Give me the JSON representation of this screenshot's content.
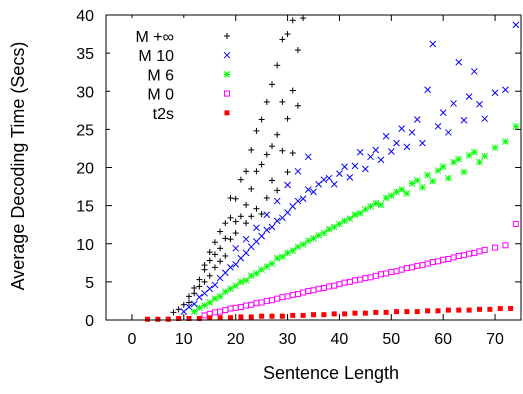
{
  "chart_data": {
    "type": "scatter",
    "title": "",
    "xlabel": "Sentence Length",
    "ylabel": "Average Decoding Time (Secs)",
    "xlim": [
      -5,
      75
    ],
    "ylim": [
      0,
      40
    ],
    "xticks": [
      "0",
      "10",
      "20",
      "30",
      "40",
      "50",
      "60",
      "70"
    ],
    "yticks": [
      "0",
      "5",
      "10",
      "15",
      "20",
      "25",
      "30",
      "35",
      "40"
    ],
    "grid": false,
    "legend_position": "top-left",
    "series": [
      {
        "name": "M +∞",
        "marker": "plus",
        "color": "#000000",
        "points": [
          [
            8,
            1.0
          ],
          [
            9,
            1.4
          ],
          [
            10,
            2.0
          ],
          [
            11,
            2.3
          ],
          [
            11,
            3.1
          ],
          [
            12,
            3.5
          ],
          [
            12,
            4.2
          ],
          [
            13,
            4.4
          ],
          [
            13,
            5.3
          ],
          [
            14,
            5.0
          ],
          [
            14,
            6.6
          ],
          [
            14,
            7.2
          ],
          [
            15,
            5.8
          ],
          [
            15,
            7.8
          ],
          [
            15,
            8.9
          ],
          [
            16,
            8.6
          ],
          [
            16,
            6.9
          ],
          [
            16,
            10.2
          ],
          [
            17,
            9.4
          ],
          [
            17,
            11.6
          ],
          [
            17,
            7.7
          ],
          [
            18,
            10.7
          ],
          [
            18,
            12.7
          ],
          [
            18,
            8.4
          ],
          [
            19,
            10.6
          ],
          [
            19,
            13.4
          ],
          [
            19,
            16.0
          ],
          [
            20,
            11.4
          ],
          [
            20,
            12.9
          ],
          [
            20,
            15.9
          ],
          [
            21,
            13.6
          ],
          [
            21,
            18.4
          ],
          [
            22,
            12.7
          ],
          [
            22,
            15.1
          ],
          [
            22,
            19.5
          ],
          [
            23,
            13.6
          ],
          [
            23,
            17.2
          ],
          [
            23,
            22.3
          ],
          [
            24,
            14.6
          ],
          [
            24,
            19.5
          ],
          [
            24,
            24.8
          ],
          [
            25,
            13.9
          ],
          [
            25,
            20.4
          ],
          [
            25,
            26.3
          ],
          [
            26,
            16.0
          ],
          [
            26,
            21.7
          ],
          [
            26,
            28.6
          ],
          [
            27,
            18.3
          ],
          [
            27,
            22.8
          ],
          [
            27,
            30.9
          ],
          [
            28,
            17.0
          ],
          [
            28,
            24.3
          ],
          [
            28,
            33.4
          ],
          [
            29,
            22.2
          ],
          [
            29,
            28.6
          ],
          [
            29,
            36.8
          ],
          [
            30,
            19.4
          ],
          [
            30,
            26.4
          ],
          [
            30,
            37.5
          ],
          [
            31,
            21.9
          ],
          [
            31,
            30.1
          ],
          [
            31,
            39.3
          ],
          [
            32,
            28.1
          ],
          [
            32,
            35.4
          ],
          [
            33,
            39.6
          ]
        ]
      },
      {
        "name": "M 10",
        "marker": "x",
        "color": "#0000ff",
        "points": [
          [
            10,
            1.1
          ],
          [
            11,
            1.7
          ],
          [
            12,
            2.1
          ],
          [
            13,
            3.0
          ],
          [
            14,
            3.5
          ],
          [
            15,
            4.1
          ],
          [
            16,
            4.6
          ],
          [
            17,
            5.5
          ],
          [
            18,
            6.2
          ],
          [
            19,
            6.9
          ],
          [
            20,
            7.3
          ],
          [
            20,
            9.4
          ],
          [
            21,
            8.1
          ],
          [
            22,
            8.8
          ],
          [
            22,
            10.6
          ],
          [
            23,
            9.6
          ],
          [
            24,
            10.3
          ],
          [
            24,
            12.1
          ],
          [
            25,
            11.0
          ],
          [
            26,
            11.8
          ],
          [
            26,
            13.8
          ],
          [
            27,
            12.2
          ],
          [
            28,
            13.0
          ],
          [
            28,
            15.6
          ],
          [
            29,
            13.4
          ],
          [
            30,
            14.1
          ],
          [
            30,
            17.7
          ],
          [
            31,
            14.9
          ],
          [
            32,
            15.6
          ],
          [
            32,
            19.5
          ],
          [
            33,
            15.9
          ],
          [
            34,
            17.1
          ],
          [
            34,
            21.4
          ],
          [
            35,
            16.8
          ],
          [
            36,
            17.8
          ],
          [
            37,
            18.4
          ],
          [
            38,
            18.6
          ],
          [
            39,
            17.8
          ],
          [
            40,
            19.2
          ],
          [
            41,
            20.1
          ],
          [
            42,
            18.7
          ],
          [
            43,
            20.2
          ],
          [
            44,
            22.0
          ],
          [
            45,
            19.8
          ],
          [
            46,
            21.4
          ],
          [
            47,
            22.3
          ],
          [
            48,
            21.0
          ],
          [
            49,
            24.1
          ],
          [
            50,
            22.1
          ],
          [
            51,
            23.2
          ],
          [
            52,
            25.1
          ],
          [
            53,
            22.7
          ],
          [
            54,
            24.6
          ],
          [
            55,
            26.3
          ],
          [
            56,
            23.2
          ],
          [
            57,
            30.2
          ],
          [
            58,
            36.2
          ],
          [
            59,
            25.4
          ],
          [
            60,
            27.2
          ],
          [
            61,
            24.6
          ],
          [
            62,
            28.4
          ],
          [
            63,
            33.8
          ],
          [
            64,
            26.2
          ],
          [
            65,
            29.3
          ],
          [
            66,
            32.6
          ],
          [
            67,
            28.3
          ],
          [
            68,
            26.4
          ],
          [
            70,
            29.8
          ],
          [
            72,
            30.2
          ],
          [
            74,
            38.7
          ]
        ]
      },
      {
        "name": "M 6",
        "marker": "star",
        "color": "#00ff00",
        "points": [
          [
            12,
            1.1
          ],
          [
            13,
            1.6
          ],
          [
            14,
            1.9
          ],
          [
            15,
            2.3
          ],
          [
            16,
            2.8
          ],
          [
            17,
            3.1
          ],
          [
            18,
            3.7
          ],
          [
            19,
            4.1
          ],
          [
            20,
            4.5
          ],
          [
            21,
            5.0
          ],
          [
            22,
            5.2
          ],
          [
            23,
            5.8
          ],
          [
            24,
            6.1
          ],
          [
            25,
            6.6
          ],
          [
            26,
            7.0
          ],
          [
            27,
            7.4
          ],
          [
            28,
            8.1
          ],
          [
            29,
            8.3
          ],
          [
            30,
            8.8
          ],
          [
            31,
            9.1
          ],
          [
            32,
            9.6
          ],
          [
            33,
            9.9
          ],
          [
            34,
            10.4
          ],
          [
            35,
            10.7
          ],
          [
            36,
            11.1
          ],
          [
            37,
            11.4
          ],
          [
            38,
            11.9
          ],
          [
            39,
            12.2
          ],
          [
            40,
            12.6
          ],
          [
            41,
            13.0
          ],
          [
            42,
            13.3
          ],
          [
            43,
            13.8
          ],
          [
            44,
            14.0
          ],
          [
            45,
            14.5
          ],
          [
            46,
            14.9
          ],
          [
            47,
            15.3
          ],
          [
            48,
            15.1
          ],
          [
            49,
            16.0
          ],
          [
            50,
            16.3
          ],
          [
            51,
            16.8
          ],
          [
            52,
            17.1
          ],
          [
            53,
            16.6
          ],
          [
            54,
            17.9
          ],
          [
            55,
            18.3
          ],
          [
            56,
            17.4
          ],
          [
            57,
            19.0
          ],
          [
            58,
            18.2
          ],
          [
            59,
            19.6
          ],
          [
            60,
            20.1
          ],
          [
            61,
            18.6
          ],
          [
            62,
            20.7
          ],
          [
            63,
            21.1
          ],
          [
            64,
            19.4
          ],
          [
            65,
            21.6
          ],
          [
            66,
            22.0
          ],
          [
            67,
            20.7
          ],
          [
            68,
            21.5
          ],
          [
            70,
            22.6
          ],
          [
            72,
            23.4
          ],
          [
            74,
            25.4
          ]
        ]
      },
      {
        "name": "M 0",
        "marker": "square-open",
        "color": "#ff00ff",
        "points": [
          [
            14,
            0.6
          ],
          [
            15,
            0.8
          ],
          [
            16,
            1.0
          ],
          [
            17,
            1.1
          ],
          [
            18,
            1.3
          ],
          [
            19,
            1.5
          ],
          [
            20,
            1.6
          ],
          [
            21,
            1.7
          ],
          [
            22,
            1.9
          ],
          [
            23,
            2.0
          ],
          [
            24,
            2.2
          ],
          [
            25,
            2.3
          ],
          [
            26,
            2.5
          ],
          [
            27,
            2.6
          ],
          [
            28,
            2.8
          ],
          [
            29,
            3.0
          ],
          [
            30,
            3.1
          ],
          [
            31,
            3.3
          ],
          [
            32,
            3.4
          ],
          [
            33,
            3.6
          ],
          [
            34,
            3.8
          ],
          [
            35,
            3.9
          ],
          [
            36,
            4.1
          ],
          [
            37,
            4.2
          ],
          [
            38,
            4.4
          ],
          [
            39,
            4.5
          ],
          [
            40,
            4.7
          ],
          [
            41,
            4.9
          ],
          [
            42,
            5.0
          ],
          [
            43,
            5.2
          ],
          [
            44,
            5.3
          ],
          [
            45,
            5.5
          ],
          [
            46,
            5.6
          ],
          [
            47,
            5.8
          ],
          [
            48,
            6.0
          ],
          [
            49,
            6.1
          ],
          [
            50,
            6.3
          ],
          [
            51,
            6.4
          ],
          [
            52,
            6.6
          ],
          [
            53,
            6.8
          ],
          [
            54,
            6.9
          ],
          [
            55,
            7.1
          ],
          [
            56,
            7.2
          ],
          [
            57,
            7.4
          ],
          [
            58,
            7.6
          ],
          [
            59,
            7.7
          ],
          [
            60,
            7.9
          ],
          [
            61,
            8.0
          ],
          [
            62,
            8.2
          ],
          [
            63,
            8.4
          ],
          [
            64,
            8.5
          ],
          [
            65,
            8.7
          ],
          [
            66,
            8.8
          ],
          [
            67,
            9.0
          ],
          [
            68,
            9.2
          ],
          [
            70,
            9.5
          ],
          [
            72,
            9.8
          ],
          [
            74,
            12.6
          ]
        ]
      },
      {
        "name": "t2s",
        "marker": "square-filled",
        "color": "#ff0000",
        "points": [
          [
            3,
            0.1
          ],
          [
            5,
            0.1
          ],
          [
            7,
            0.1
          ],
          [
            9,
            0.2
          ],
          [
            11,
            0.2
          ],
          [
            13,
            0.2
          ],
          [
            15,
            0.3
          ],
          [
            17,
            0.3
          ],
          [
            19,
            0.3
          ],
          [
            21,
            0.4
          ],
          [
            23,
            0.4
          ],
          [
            25,
            0.5
          ],
          [
            27,
            0.5
          ],
          [
            29,
            0.5
          ],
          [
            31,
            0.6
          ],
          [
            33,
            0.6
          ],
          [
            35,
            0.7
          ],
          [
            37,
            0.7
          ],
          [
            39,
            0.8
          ],
          [
            41,
            0.8
          ],
          [
            43,
            0.9
          ],
          [
            45,
            0.9
          ],
          [
            47,
            1.0
          ],
          [
            49,
            1.0
          ],
          [
            51,
            1.1
          ],
          [
            53,
            1.1
          ],
          [
            55,
            1.1
          ],
          [
            57,
            1.2
          ],
          [
            59,
            1.2
          ],
          [
            61,
            1.3
          ],
          [
            63,
            1.3
          ],
          [
            65,
            1.3
          ],
          [
            67,
            1.4
          ],
          [
            69,
            1.4
          ],
          [
            71,
            1.5
          ],
          [
            73,
            1.5
          ]
        ]
      }
    ]
  }
}
